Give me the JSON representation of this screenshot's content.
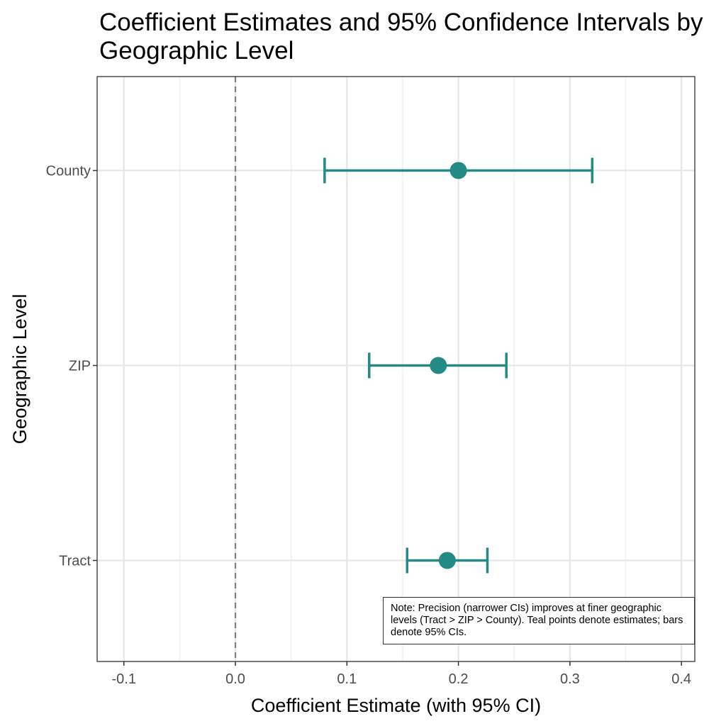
{
  "chart_data": {
    "type": "scatter",
    "subtype": "forest-plot-with-error-bars",
    "title": "Coefficient Estimates and 95% Confidence Intervals by Geographic Level",
    "xlabel": "Coefficient Estimate (with 95% CI)",
    "ylabel": "Geographic Level",
    "xlim": [
      -0.124,
      0.412
    ],
    "xticks": [
      -0.1,
      0.0,
      0.1,
      0.2,
      0.3,
      0.4
    ],
    "xtick_labels": [
      "-0.1",
      "0.0",
      "0.1",
      "0.2",
      "0.3",
      "0.4"
    ],
    "categories": [
      "County",
      "ZIP",
      "Tract"
    ],
    "estimates": [
      0.2,
      0.182,
      0.19
    ],
    "ci_lower": [
      0.08,
      0.12,
      0.154
    ],
    "ci_upper": [
      0.32,
      0.243,
      0.226
    ],
    "reference_line": 0,
    "reference_line_style": "dashed",
    "grid": true,
    "color": "#248a85",
    "annotation": "Note: Precision (narrower CIs) improves at finer geographic levels (Tract > ZIP > County). Teal points denote estimates; bars denote 95% CIs."
  }
}
